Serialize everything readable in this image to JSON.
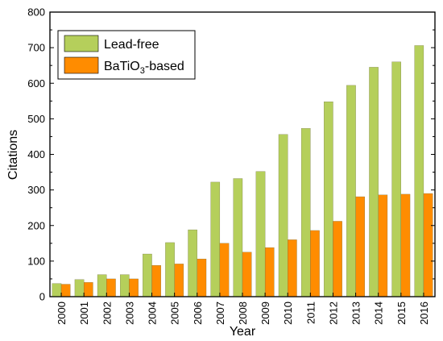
{
  "chart_data": {
    "type": "bar",
    "xlabel": "Year",
    "ylabel": "Citations",
    "ylim": [
      0,
      800
    ],
    "yticks": [
      0,
      100,
      200,
      300,
      400,
      500,
      600,
      700,
      800
    ],
    "categories": [
      "2000",
      "2001",
      "2002",
      "2003",
      "2004",
      "2005",
      "2006",
      "2007",
      "2008",
      "2009",
      "2010",
      "2011",
      "2012",
      "2013",
      "2014",
      "2015",
      "2016"
    ],
    "series": [
      {
        "name": "Lead-free",
        "color": "#b5cf5b",
        "values": [
          37,
          48,
          62,
          62,
          120,
          152,
          188,
          322,
          332,
          352,
          456,
          473,
          548,
          594,
          645,
          660,
          706
        ]
      },
      {
        "name": "BaTiO3-based",
        "legend_main": "BaTiO",
        "legend_sub": "3",
        "legend_suffix": "-based",
        "color": "#ff8c00",
        "values": [
          35,
          40,
          50,
          50,
          88,
          92,
          106,
          150,
          125,
          138,
          160,
          186,
          212,
          281,
          286,
          288,
          290
        ]
      }
    ],
    "legend_position": "top-left",
    "grid": false
  }
}
